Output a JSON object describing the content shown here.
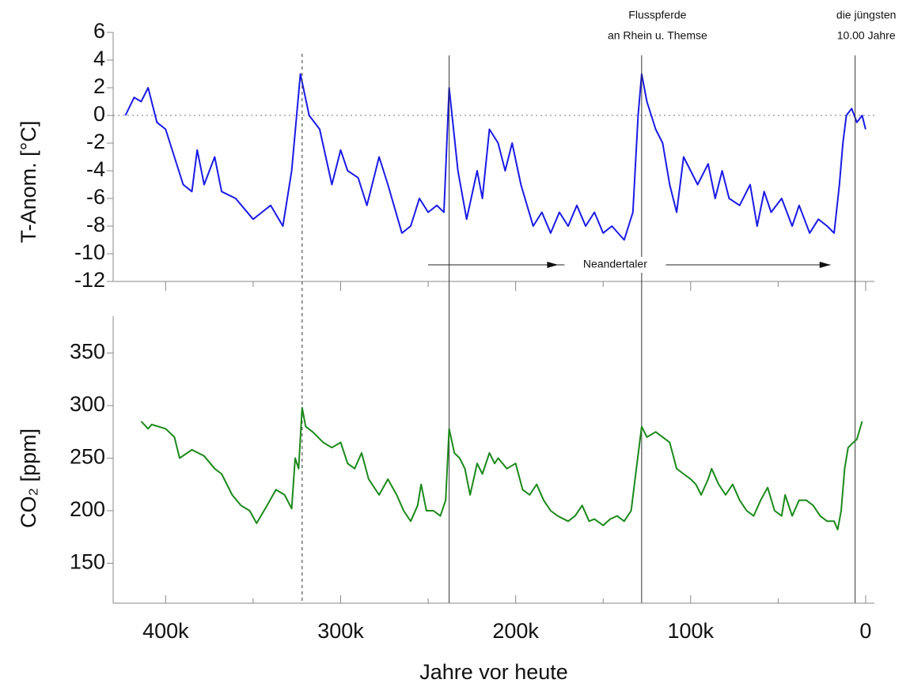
{
  "chart_data": [
    {
      "type": "line",
      "ylabel": "T-Anom. [°C]",
      "xlim": [
        430,
        -5
      ],
      "ylim": [
        -12,
        6
      ],
      "yticks": [
        -12,
        -10,
        -8,
        -6,
        -4,
        -2,
        0,
        2,
        4,
        6
      ],
      "zero_line": true,
      "series": [
        {
          "name": "T-Anom.",
          "color": "#1a1ae6",
          "x": [
            423,
            418,
            414,
            410,
            405,
            400,
            395,
            390,
            385,
            382,
            378,
            372,
            368,
            360,
            350,
            345,
            340,
            333,
            328,
            323,
            318,
            312,
            305,
            300,
            296,
            290,
            285,
            278,
            273,
            265,
            260,
            255,
            250,
            245,
            241,
            238,
            233,
            228,
            222,
            219,
            215,
            210,
            206,
            202,
            197,
            190,
            185,
            180,
            175,
            170,
            165,
            160,
            155,
            150,
            145,
            138,
            133,
            130,
            128,
            125,
            120,
            116,
            112,
            108,
            104,
            100,
            96,
            90,
            86,
            82,
            78,
            72,
            66,
            62,
            58,
            54,
            48,
            42,
            38,
            32,
            27,
            22,
            18,
            15,
            13,
            11,
            8,
            5,
            2,
            0
          ],
          "values": [
            0,
            1.3,
            1,
            2,
            -0.5,
            -1,
            -3,
            -5,
            -5.5,
            -2.5,
            -5,
            -3,
            -5.5,
            -6,
            -7.5,
            -7,
            -6.5,
            -8,
            -4,
            3,
            0,
            -1,
            -5,
            -2.5,
            -4,
            -4.5,
            -6.5,
            -3,
            -5,
            -8.5,
            -8,
            -6,
            -7,
            -6.5,
            -7,
            2,
            -4,
            -7.5,
            -4,
            -6,
            -1,
            -2,
            -4,
            -2,
            -5,
            -8,
            -7,
            -8.5,
            -7,
            -8,
            -6.5,
            -8,
            -7,
            -8.5,
            -8,
            -9,
            -7,
            0,
            3,
            1,
            -1,
            -2,
            -5,
            -7,
            -3,
            -4,
            -5,
            -3.5,
            -6,
            -4,
            -6,
            -6.5,
            -5,
            -8,
            -5.5,
            -7,
            -6,
            -8,
            -6.5,
            -8.5,
            -7.5,
            -8,
            -8.5,
            -5,
            -2,
            0,
            0.5,
            -0.5,
            0,
            -1
          ]
        }
      ],
      "vlines": [
        {
          "x": 322,
          "style": "dashed"
        },
        {
          "x": 238,
          "style": "solid"
        },
        {
          "x": 128,
          "style": "solid"
        },
        {
          "x": 6,
          "style": "solid"
        }
      ],
      "annotations": [
        {
          "x": 128,
          "lines": [
            "Flusspferde",
            "an Rhein u. Themse"
          ]
        },
        {
          "x": 6,
          "lines": [
            "die jüngsten",
            "10.00 Jahre"
          ]
        }
      ],
      "arrow": {
        "text": "Neandertaler",
        "from": 250,
        "to": 20,
        "y": -10.8
      }
    },
    {
      "type": "line",
      "ylabel": "CO₂ [ppm]",
      "xlabel": "Jahre vor heute",
      "xlim": [
        430,
        -5
      ],
      "ylim": [
        112,
        385
      ],
      "yticks": [
        150,
        200,
        250,
        300,
        350
      ],
      "xticks": [
        {
          "value": 400,
          "label": "400k"
        },
        {
          "value": 300,
          "label": "300k"
        },
        {
          "value": 200,
          "label": "200k"
        },
        {
          "value": 100,
          "label": "100k"
        },
        0
      ],
      "xminorticks": [
        350,
        250,
        150,
        50
      ],
      "series": [
        {
          "name": "CO₂",
          "color": "#1a8a1a",
          "x": [
            414,
            410,
            408,
            400,
            395,
            392,
            385,
            378,
            372,
            368,
            362,
            357,
            352,
            348,
            342,
            337,
            332,
            328,
            326,
            324,
            322,
            320,
            316,
            310,
            305,
            300,
            296,
            292,
            288,
            284,
            278,
            273,
            268,
            264,
            260,
            256,
            254,
            251,
            247,
            243,
            240,
            238,
            235,
            232,
            229,
            226,
            222,
            219,
            215,
            212,
            210,
            205,
            200,
            196,
            192,
            188,
            184,
            180,
            176,
            170,
            166,
            162,
            158,
            155,
            150,
            146,
            142,
            138,
            134,
            131,
            128,
            125,
            120,
            116,
            112,
            108,
            104,
            100,
            97,
            94,
            90,
            88,
            84,
            80,
            76,
            72,
            68,
            64,
            60,
            56,
            52,
            48,
            46,
            42,
            38,
            34,
            30,
            26,
            22,
            18,
            16,
            14,
            12,
            10,
            7,
            5,
            2
          ],
          "values": [
            285,
            278,
            282,
            278,
            270,
            250,
            258,
            252,
            240,
            235,
            215,
            205,
            200,
            188,
            205,
            220,
            215,
            202,
            250,
            240,
            298,
            280,
            275,
            265,
            260,
            265,
            245,
            240,
            255,
            230,
            215,
            230,
            215,
            200,
            190,
            205,
            225,
            200,
            200,
            195,
            210,
            278,
            255,
            250,
            240,
            215,
            245,
            235,
            255,
            245,
            250,
            240,
            245,
            220,
            215,
            225,
            210,
            200,
            195,
            190,
            195,
            205,
            190,
            192,
            186,
            192,
            195,
            190,
            200,
            240,
            280,
            270,
            275,
            270,
            265,
            240,
            235,
            230,
            225,
            215,
            230,
            240,
            225,
            215,
            225,
            210,
            200,
            195,
            210,
            222,
            200,
            195,
            215,
            195,
            210,
            210,
            205,
            195,
            190,
            190,
            182,
            200,
            240,
            260,
            265,
            268,
            285
          ]
        }
      ]
    }
  ]
}
